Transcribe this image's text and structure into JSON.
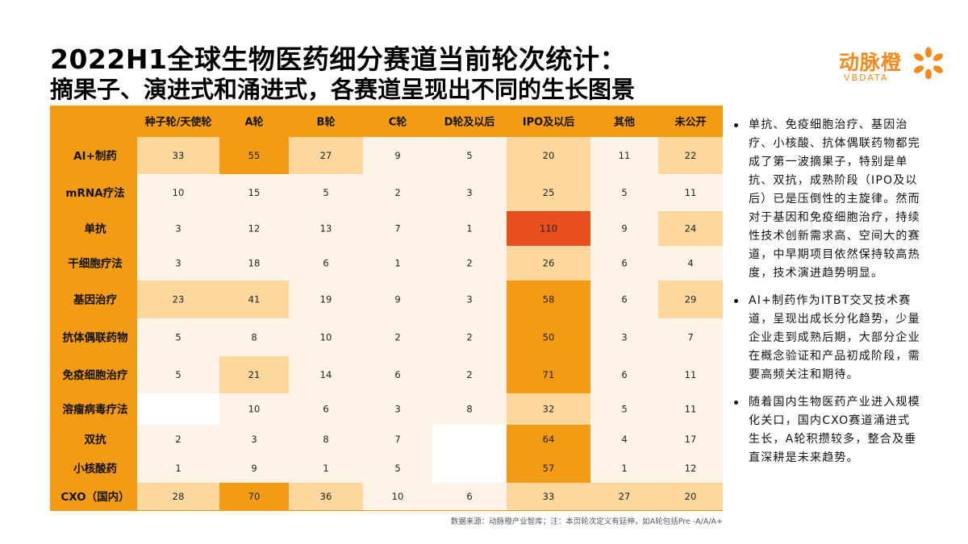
{
  "title": {
    "line1": "2022H1全球生物医药细分赛道当前轮次统计：",
    "line2": "摘果子、演进式和涌进式，各赛道呈现出不同的生长图景"
  },
  "logo": {
    "name": "动脉橙",
    "sub": "VBDATA"
  },
  "colors": {
    "header_bg": "#f39b15",
    "light": "#fdf3e6",
    "medium": "#fcd79e",
    "strong": "#f39b15",
    "max": "#e94e1f",
    "blank": "#ffffff"
  },
  "chart_data": {
    "type": "table",
    "columns": [
      "种子轮/天使轮",
      "A轮",
      "B轮",
      "C轮",
      "D轮及以后",
      "IPO及以后",
      "其他",
      "未公开"
    ],
    "rows": [
      {
        "label": "AI+制药",
        "values": [
          33,
          55,
          27,
          9,
          5,
          20,
          11,
          22
        ],
        "levels": [
          "m",
          "s",
          "m",
          "l",
          "l",
          "m",
          "l",
          "m"
        ]
      },
      {
        "label": "mRNA疗法",
        "values": [
          10,
          15,
          5,
          2,
          3,
          25,
          5,
          11
        ],
        "levels": [
          "l",
          "l",
          "l",
          "l",
          "l",
          "m",
          "l",
          "l"
        ]
      },
      {
        "label": "单抗",
        "values": [
          3,
          12,
          13,
          7,
          1,
          110,
          9,
          24
        ],
        "levels": [
          "l",
          "l",
          "l",
          "l",
          "l",
          "x",
          "l",
          "m"
        ]
      },
      {
        "label": "干细胞疗法",
        "values": [
          3,
          18,
          6,
          1,
          2,
          26,
          6,
          4
        ],
        "levels": [
          "l",
          "l",
          "l",
          "l",
          "l",
          "m",
          "l",
          "l"
        ]
      },
      {
        "label": "基因治疗",
        "values": [
          23,
          41,
          19,
          9,
          3,
          58,
          6,
          29
        ],
        "levels": [
          "m",
          "m",
          "l",
          "l",
          "l",
          "s",
          "l",
          "m"
        ]
      },
      {
        "label": "抗体偶联药物",
        "values": [
          5,
          8,
          10,
          2,
          2,
          50,
          3,
          7
        ],
        "levels": [
          "l",
          "l",
          "l",
          "l",
          "l",
          "s",
          "l",
          "l"
        ]
      },
      {
        "label": "免疫细胞治疗",
        "values": [
          5,
          21,
          14,
          6,
          2,
          71,
          6,
          11
        ],
        "levels": [
          "l",
          "m",
          "l",
          "l",
          "l",
          "s",
          "l",
          "l"
        ]
      },
      {
        "label": "溶瘤病毒疗法",
        "values": [
          null,
          10,
          6,
          3,
          8,
          32,
          5,
          11
        ],
        "levels": [
          "w",
          "l",
          "l",
          "l",
          "l",
          "m",
          "l",
          "l"
        ]
      },
      {
        "label": "双抗",
        "values": [
          2,
          3,
          8,
          7,
          null,
          64,
          4,
          17
        ],
        "levels": [
          "l",
          "l",
          "l",
          "l",
          "w",
          "s",
          "l",
          "l"
        ]
      },
      {
        "label": "小核酸药",
        "values": [
          1,
          9,
          1,
          5,
          null,
          57,
          1,
          12
        ],
        "levels": [
          "l",
          "l",
          "l",
          "l",
          "w",
          "s",
          "l",
          "l"
        ]
      },
      {
        "label": "CXO（国内）",
        "values": [
          28,
          70,
          36,
          10,
          6,
          33,
          27,
          20
        ],
        "levels": [
          "m",
          "s",
          "m",
          "l",
          "l",
          "m",
          "m",
          "m"
        ]
      }
    ]
  },
  "source": "数据来源：动脉橙产业智库；注：本页轮次定义有延伸，如A轮包括Pre -A/A/A+",
  "bullets": [
    "单抗、免疫细胞治疗、基因治疗、小核酸、抗体偶联药物都完成了第一波摘果子，特别是单抗、双抗，成熟阶段（IPO及以后）已是压倒性的主旋律。然而对于基因和免疫细胞治疗，持续性技术创新需求高、空间大的赛道，中早期项目依然保持较高热度，技术演进趋势明显。",
    "AI+制药作为ITBT交叉技术赛道，呈现出成长分化趋势，少量企业走到成熟后期，大部分企业在概念验证和产品初成阶段，需要高频关注和期待。",
    "随着国内生物医药产业进入规模化关口，国内CXO赛道涌进式生长，A轮积攒较多，整合及垂直深耕是未来趋势。"
  ]
}
